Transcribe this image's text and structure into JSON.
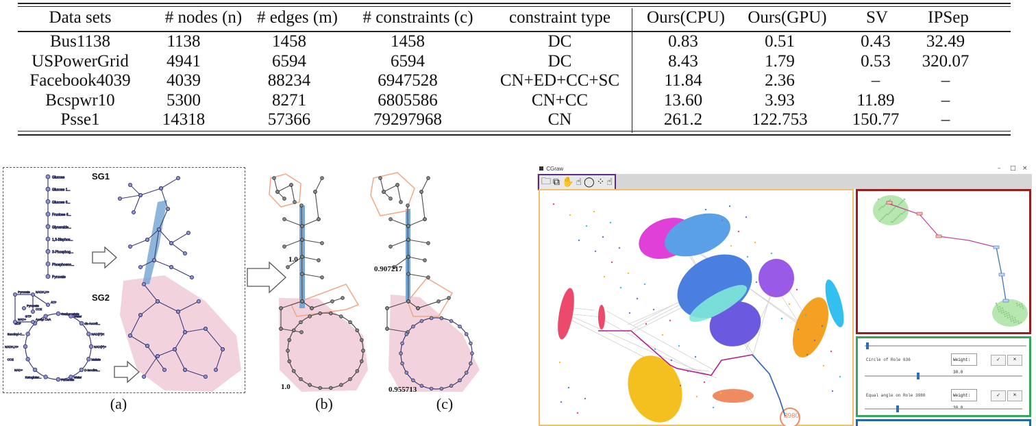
{
  "table": {
    "headers": [
      "Data sets",
      "# nodes (n)",
      "# edges (m)",
      "# constraints (c)",
      "constraint type",
      "Ours(CPU)",
      "Ours(GPU)",
      "SV",
      "IPSep"
    ],
    "rows": [
      [
        "Bus1138",
        "1138",
        "1458",
        "1458",
        "DC",
        "0.83",
        "0.51",
        "0.43",
        "32.49"
      ],
      [
        "USPowerGrid",
        "4941",
        "6594",
        "6594",
        "DC",
        "8.43",
        "1.79",
        "0.53",
        "320.07"
      ],
      [
        "Facebook4039",
        "4039",
        "88234",
        "6947528",
        "CN+ED+CC+SC",
        "11.84",
        "2.36",
        "–",
        "–"
      ],
      [
        "Bcspwr10",
        "5300",
        "8271",
        "6805586",
        "CN+CC",
        "13.60",
        "3.93",
        "11.89",
        "–"
      ],
      [
        "Psse1",
        "14318",
        "57366",
        "79297968",
        "CN",
        "261.2",
        "122.753",
        "150.77",
        "–"
      ]
    ]
  },
  "figure": {
    "captions": {
      "a": "(a)",
      "b": "(b)",
      "c": "(c)"
    },
    "sg1_label": "SG1",
    "sg2_label": "SG2",
    "sg1_nodes": [
      "Glucose",
      "Glucose 1...",
      "Glucose 6...",
      "Fructose 6...",
      "Glyceralde...",
      "1,3-Bisphos...",
      "3-Phosphog...",
      "Phosphoeno...",
      "Pyruvate"
    ],
    "sg2_nodes": [
      "Pyruvate",
      "NADH,H+",
      "NAD+",
      "Acetyl CoA",
      "CO2",
      "ATP",
      "Oxaloacetate",
      "Water",
      "cis-Aconit...",
      "NAD(P)H",
      "NAD(P)+",
      "Malate",
      "D-Isocitra...",
      "Water",
      "Fumarate",
      "Ketoglutar...",
      "NAD+",
      "CO2",
      "NADH,H+",
      "Succinyl-C...",
      "GDP",
      "GTP"
    ],
    "b_value_top": "1.0",
    "b_value_bottom": "1.0",
    "c_value_top": "0.907217",
    "c_value_bottom": "0.955713"
  },
  "app": {
    "title": "CGraw",
    "window_controls": [
      "–",
      "□",
      "×"
    ],
    "tool_icons": [
      "folder-icon",
      "copy-icon",
      "hand-icon",
      "pointer-hand-icon",
      "lasso-icon",
      "scatter-icon",
      "pointer-hand-icon"
    ],
    "tool_glyphs": [
      "🗀",
      "⧉",
      "✋",
      "☝",
      "◯",
      "⁘",
      "☝"
    ],
    "constraints": [
      {
        "label": "Circle of Role 636",
        "weight": "Weight: 30.0",
        "ok": "✓",
        "cancel": "×",
        "slider": 0.33
      },
      {
        "label": "Equal angle on Role 3980",
        "weight": "Weight: 30.0",
        "ok": "✓",
        "cancel": "×",
        "slider": 0.2
      }
    ],
    "node_label": "3980",
    "colors": {
      "toolbar_border": "#5a2a85",
      "main_border": "#f0c070",
      "minimap_border": "#9b1c1c",
      "control_border": "#3aa35a",
      "bottom_border": "#2266aa"
    }
  }
}
